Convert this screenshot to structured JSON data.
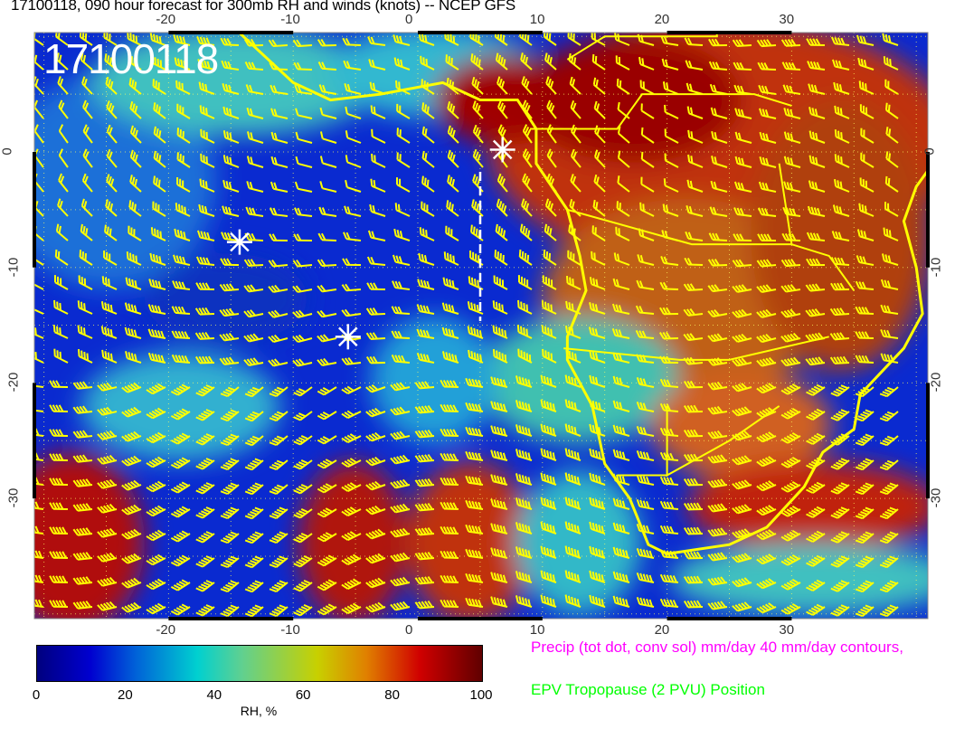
{
  "title": "17100118, 090 hour forecast for 300mb RH and winds (knots) -- NCEP GFS",
  "datestamp": "17100118",
  "map": {
    "lon_ticks": [
      "-20",
      "-10",
      "0",
      "10",
      "20",
      "30"
    ],
    "lat_ticks": [
      "0",
      "-10",
      "-20",
      "-30"
    ],
    "colors": {
      "coastline": "#ffff00",
      "wind_barbs": "#ffff00",
      "precip_contours": "#ff00ff",
      "markers": "#ffffff"
    },
    "markers": [
      {
        "type": "asterisk",
        "lon": -14.3,
        "lat": -7.8
      },
      {
        "type": "asterisk",
        "lon": -5.6,
        "lat": -16.0
      },
      {
        "type": "asterisk",
        "lon": 6.8,
        "lat": 0.2
      }
    ]
  },
  "colorbar": {
    "title": "RH, %",
    "labels": [
      "0",
      "20",
      "40",
      "60",
      "80",
      "100"
    ],
    "colors": [
      "#00007f",
      "#0000d0",
      "#00d0d0",
      "#c8d000",
      "#d00000",
      "#600000"
    ]
  },
  "legend": {
    "precip": "Precip (tot dot, conv sol) mm/day 40 mm/day contours,",
    "epv": "EPV Tropopause (2 PVU) Position"
  }
}
